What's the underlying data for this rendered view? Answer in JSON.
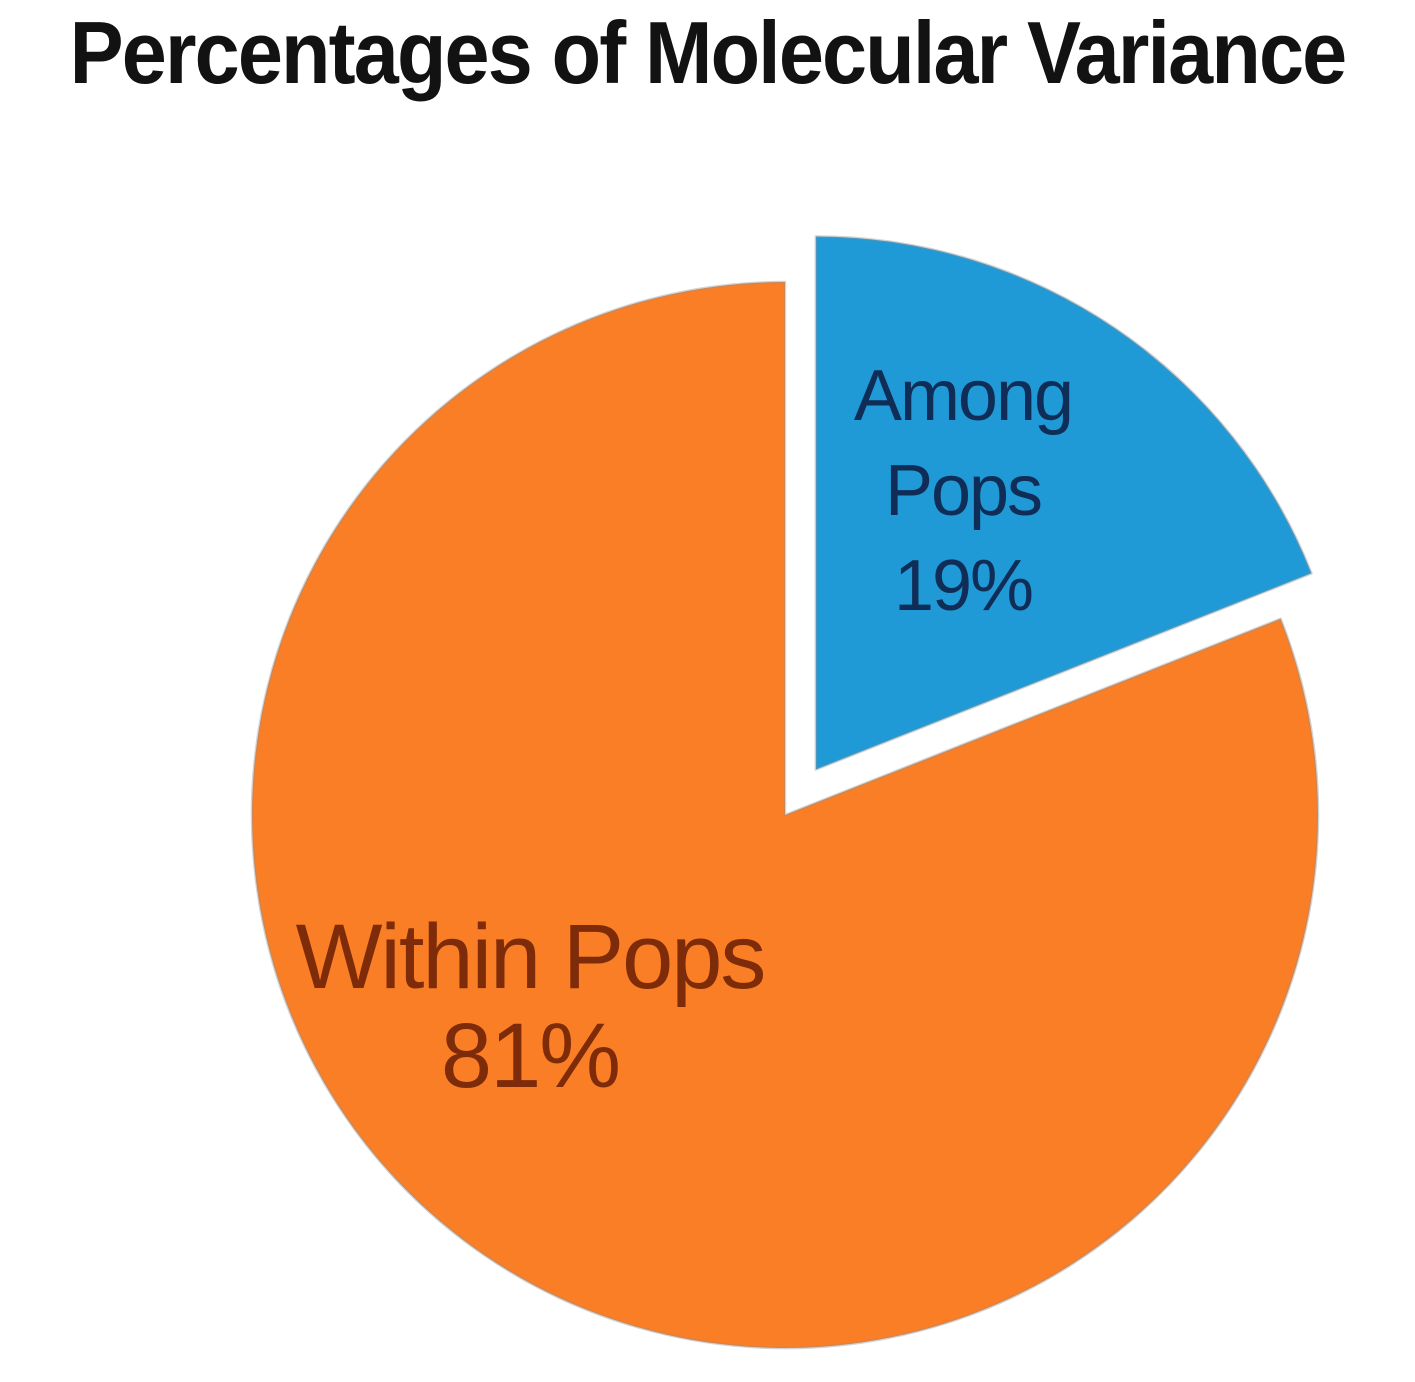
{
  "chart_data": {
    "type": "pie",
    "title": "Percentages of Molecular Variance",
    "unit": "%",
    "categories": [
      "Among Pops",
      "Within Pops"
    ],
    "values": [
      19,
      81
    ],
    "slices": [
      {
        "label": "Among Pops",
        "value": 19,
        "pct_text": "19%",
        "label_lines": [
          "Among",
          "Pops",
          "19%"
        ],
        "color": "#1f9ad6",
        "label_color": "#0f2d56",
        "exploded": true
      },
      {
        "label": "Within Pops",
        "value": 81,
        "pct_text": "81%",
        "label_lines": [
          "Within Pops",
          "81%"
        ],
        "color": "#f97e26",
        "label_color": "#7e2b09",
        "exploded": false
      }
    ],
    "start_angle_deg": 0,
    "direction": "clockwise",
    "legend": "none",
    "labels_inside": true,
    "background": "#ffffff",
    "title_color": "#121212"
  }
}
